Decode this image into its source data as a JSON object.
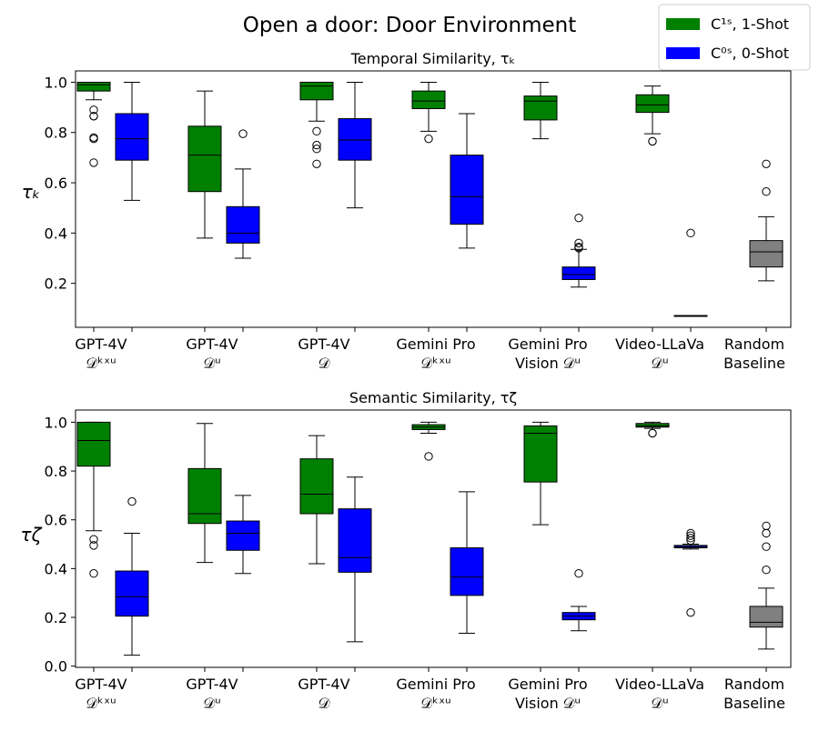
{
  "chart_data": {
    "type": "box",
    "title": "Open a door: Door Environment",
    "legend": {
      "placement": "top-right",
      "entries": [
        {
          "label": "C¹ˢ, 1-Shot",
          "color": "#008000"
        },
        {
          "label": "C⁰ˢ, 0-Shot",
          "color": "#0000ff"
        }
      ]
    },
    "categories": [
      {
        "line1": "GPT-4V",
        "line2": "𝒟ᵏˣᵘ"
      },
      {
        "line1": "GPT-4V",
        "line2": "𝒟ᵘ"
      },
      {
        "line1": "GPT-4V",
        "line2": "𝒟"
      },
      {
        "line1": "Gemini Pro",
        "line2": "𝒟ᵏˣᵘ"
      },
      {
        "line1": "Gemini Pro",
        "line2": "Vision 𝒟ᵘ"
      },
      {
        "line1": "Video-LLaVa",
        "line2": "𝒟ᵘ"
      },
      {
        "line1": "Random",
        "line2": "Baseline"
      }
    ],
    "panels": [
      {
        "title": "Temporal Similarity, τₖ",
        "ylabel": "τₖ",
        "ylim": [
          0.025,
          1.045
        ],
        "yticks": [
          0.2,
          0.4,
          0.6,
          0.8,
          1.0
        ],
        "tick_labels": [
          "0.2",
          "0.4",
          "0.6",
          "0.8",
          "1.0"
        ],
        "series": [
          {
            "name": "1-Shot",
            "color": "#008000",
            "boxes": [
              {
                "whislo": 0.93,
                "q1": 0.965,
                "med": 0.99,
                "q3": 1.0,
                "whishi": 1.0,
                "fliers": [
                  0.89,
                  0.865,
                  0.865,
                  0.78,
                  0.775,
                  0.68
                ]
              },
              {
                "whislo": 0.38,
                "q1": 0.565,
                "med": 0.71,
                "q3": 0.825,
                "whishi": 0.965,
                "fliers": []
              },
              {
                "whislo": 0.845,
                "q1": 0.93,
                "med": 0.985,
                "q3": 1.0,
                "whishi": 1.0,
                "fliers": [
                  0.805,
                  0.75,
                  0.735,
                  0.675
                ]
              },
              {
                "whislo": 0.805,
                "q1": 0.895,
                "med": 0.925,
                "q3": 0.965,
                "whishi": 1.0,
                "fliers": [
                  0.775
                ]
              },
              {
                "whislo": 0.775,
                "q1": 0.85,
                "med": 0.925,
                "q3": 0.945,
                "whishi": 1.0,
                "fliers": []
              },
              {
                "whislo": 0.795,
                "q1": 0.88,
                "med": 0.91,
                "q3": 0.95,
                "whishi": 0.985,
                "fliers": [
                  0.765,
                  0.765
                ]
              },
              null
            ]
          },
          {
            "name": "0-Shot",
            "color": "#0000ff",
            "boxes": [
              {
                "whislo": 0.53,
                "q1": 0.69,
                "med": 0.775,
                "q3": 0.875,
                "whishi": 1.0,
                "fliers": []
              },
              {
                "whislo": 0.3,
                "q1": 0.36,
                "med": 0.4,
                "q3": 0.505,
                "whishi": 0.655,
                "fliers": [
                  0.795
                ]
              },
              {
                "whislo": 0.5,
                "q1": 0.69,
                "med": 0.77,
                "q3": 0.855,
                "whishi": 1.0,
                "fliers": []
              },
              {
                "whislo": 0.34,
                "q1": 0.435,
                "med": 0.545,
                "q3": 0.71,
                "whishi": 0.875,
                "fliers": []
              },
              {
                "whislo": 0.185,
                "q1": 0.215,
                "med": 0.235,
                "q3": 0.265,
                "whishi": 0.335,
                "fliers": [
                  0.46,
                  0.36,
                  0.345,
                  0.34
                ]
              },
              {
                "whislo": 0.072,
                "q1": 0.072,
                "med": 0.072,
                "q3": 0.072,
                "whishi": 0.072,
                "fliers": [
                  0.4
                ]
              },
              null
            ]
          },
          {
            "name": "Random Baseline",
            "color": "#808080",
            "boxes": [
              null,
              null,
              null,
              null,
              null,
              null,
              {
                "whislo": 0.21,
                "q1": 0.265,
                "med": 0.325,
                "q3": 0.37,
                "whishi": 0.465,
                "fliers": [
                  0.675,
                  0.565
                ]
              }
            ]
          }
        ]
      },
      {
        "title": "Semantic Similarity, τζ",
        "ylabel": "τζ",
        "ylim": [
          -0.005,
          1.05
        ],
        "yticks": [
          0.0,
          0.2,
          0.4,
          0.6,
          0.8,
          1.0
        ],
        "tick_labels": [
          "0.0",
          "0.2",
          "0.4",
          "0.6",
          "0.8",
          "1.0"
        ],
        "series": [
          {
            "name": "1-Shot",
            "color": "#008000",
            "boxes": [
              {
                "whislo": 0.555,
                "q1": 0.82,
                "med": 0.925,
                "q3": 1.0,
                "whishi": 1.0,
                "fliers": [
                  0.52,
                  0.495,
                  0.38
                ]
              },
              {
                "whislo": 0.425,
                "q1": 0.585,
                "med": 0.625,
                "q3": 0.81,
                "whishi": 0.995,
                "fliers": []
              },
              {
                "whislo": 0.42,
                "q1": 0.625,
                "med": 0.705,
                "q3": 0.85,
                "whishi": 0.945,
                "fliers": []
              },
              {
                "whislo": 0.955,
                "q1": 0.97,
                "med": 0.98,
                "q3": 0.99,
                "whishi": 1.0,
                "fliers": [
                  0.86
                ]
              },
              {
                "whislo": 0.58,
                "q1": 0.755,
                "med": 0.955,
                "q3": 0.985,
                "whishi": 1.0,
                "fliers": []
              },
              {
                "whislo": 0.975,
                "q1": 0.98,
                "med": 0.985,
                "q3": 0.995,
                "whishi": 1.0,
                "fliers": [
                  0.955,
                  0.955
                ]
              },
              null
            ]
          },
          {
            "name": "0-Shot",
            "color": "#0000ff",
            "boxes": [
              {
                "whislo": 0.045,
                "q1": 0.205,
                "med": 0.285,
                "q3": 0.39,
                "whishi": 0.545,
                "fliers": [
                  0.675
                ]
              },
              {
                "whislo": 0.38,
                "q1": 0.475,
                "med": 0.545,
                "q3": 0.595,
                "whishi": 0.7,
                "fliers": []
              },
              {
                "whislo": 0.1,
                "q1": 0.385,
                "med": 0.445,
                "q3": 0.645,
                "whishi": 0.775,
                "fliers": []
              },
              {
                "whislo": 0.135,
                "q1": 0.29,
                "med": 0.365,
                "q3": 0.485,
                "whishi": 0.715,
                "fliers": []
              },
              {
                "whislo": 0.145,
                "q1": 0.19,
                "med": 0.205,
                "q3": 0.22,
                "whishi": 0.245,
                "fliers": [
                  0.38
                ]
              },
              {
                "whislo": 0.48,
                "q1": 0.485,
                "med": 0.49,
                "q3": 0.495,
                "whishi": 0.5,
                "fliers": [
                  0.545,
                  0.535,
                  0.525,
                  0.515,
                  0.22
                ]
              },
              null
            ]
          },
          {
            "name": "Random Baseline",
            "color": "#808080",
            "boxes": [
              null,
              null,
              null,
              null,
              null,
              null,
              {
                "whislo": 0.07,
                "q1": 0.16,
                "med": 0.18,
                "q3": 0.245,
                "whishi": 0.32,
                "fliers": [
                  0.575,
                  0.545,
                  0.49,
                  0.395
                ]
              }
            ]
          }
        ]
      }
    ]
  }
}
